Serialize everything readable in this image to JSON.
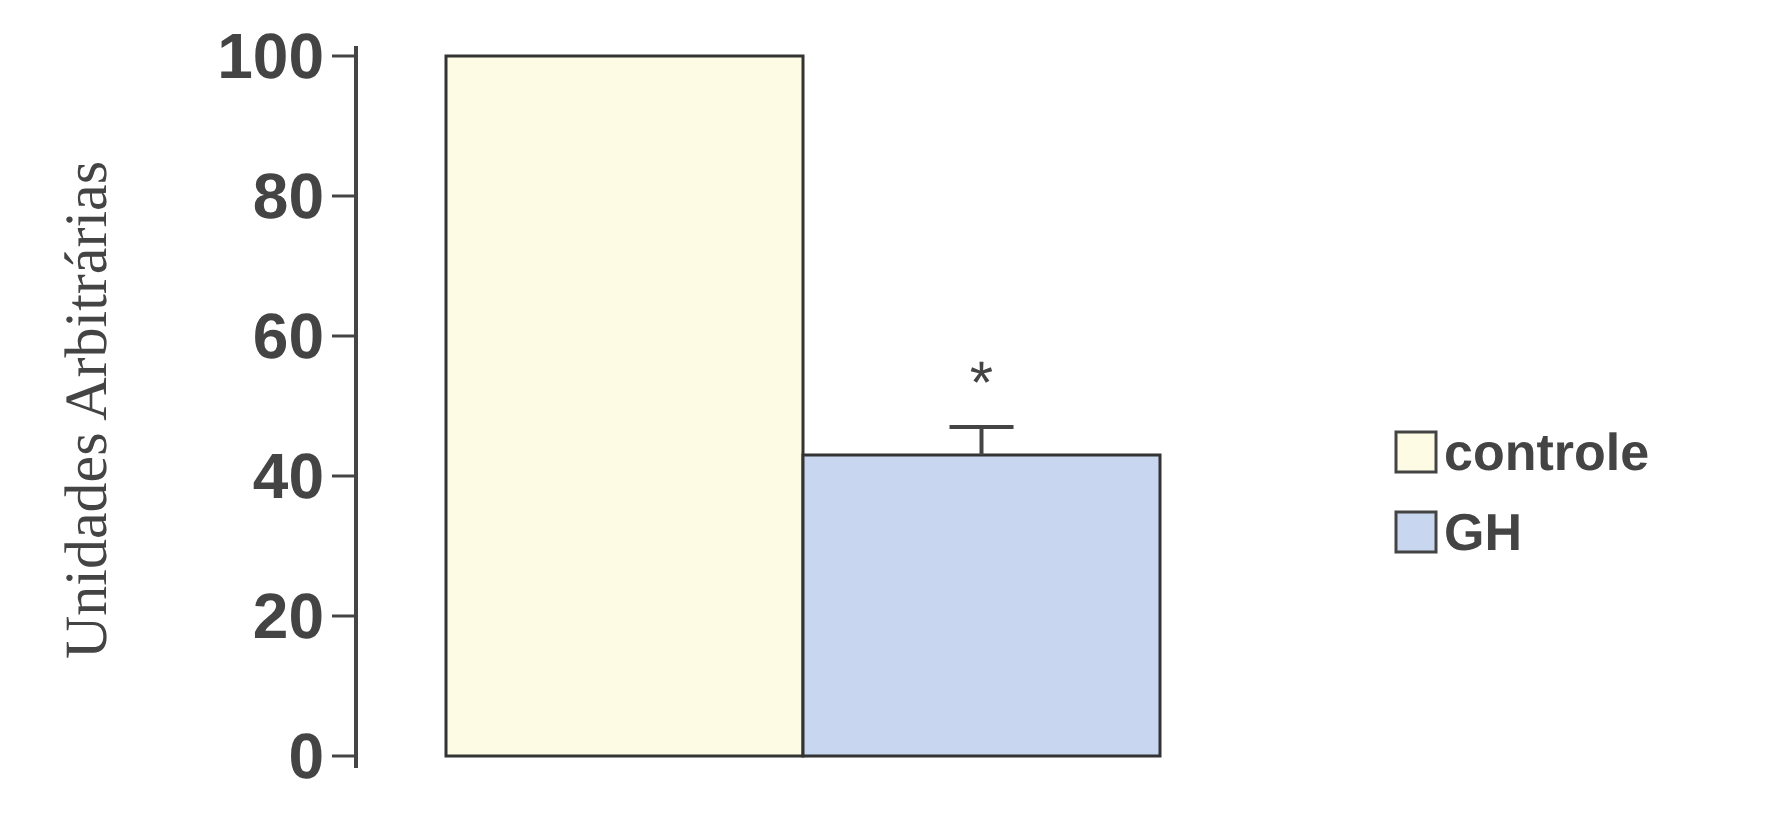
{
  "chart_data": {
    "type": "bar",
    "ylabel": "Unidades Arbitrárias",
    "categories": [
      null
    ],
    "series": [
      {
        "name": "controle",
        "color": "#fdfbe3",
        "values": [
          100
        ]
      },
      {
        "name": "GH",
        "color": "#c8d6f0",
        "values": [
          43
        ],
        "errors": [
          [
            43,
            47
          ]
        ]
      }
    ],
    "ylim": [
      0,
      100
    ],
    "yticks": [
      0,
      20,
      40,
      60,
      80,
      100
    ],
    "legend": "right",
    "annotations": [
      "*"
    ]
  }
}
